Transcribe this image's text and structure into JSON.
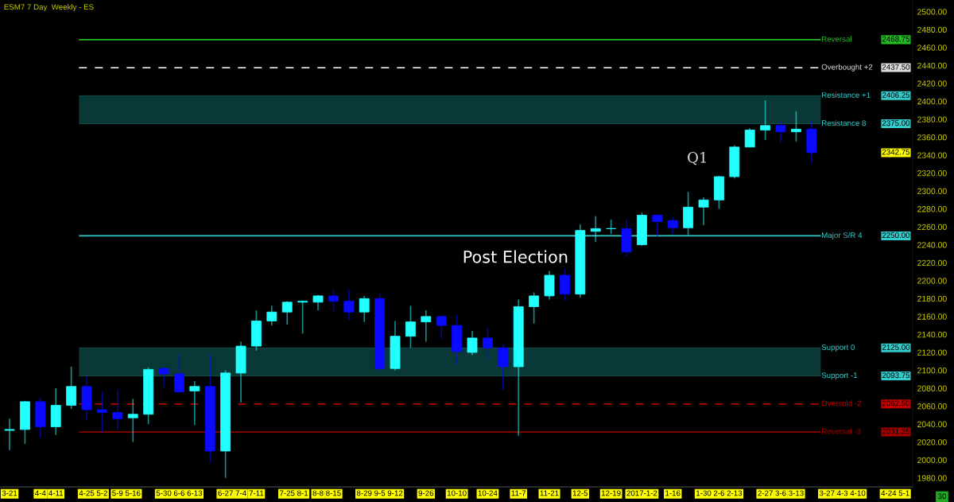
{
  "chart_data": {
    "type": "candlestick",
    "title": "ESM7 7 Day  Weekly - ES",
    "categories": [
      "3-21",
      null,
      "4-4",
      "4-11",
      null,
      "4-25",
      "5-2",
      "5-9",
      "5-16",
      null,
      "5-30",
      "6-6",
      "6-13",
      null,
      "6-27",
      "7-4",
      "7-11",
      null,
      "7-25",
      "8-1",
      "8-8",
      "8-15",
      null,
      "8-29",
      "9-5",
      "9-12",
      null,
      "9-26",
      null,
      "10-10",
      null,
      "10-24",
      null,
      "11-7",
      null,
      "11-21",
      null,
      "12-5",
      null,
      "12-19",
      null,
      "2017-1-2",
      null,
      "1-16",
      null,
      "1-30",
      "2-6",
      "2-13",
      null,
      "2-27",
      "3-6",
      "3-13",
      null,
      "3-27",
      "4-3",
      "4-10",
      null,
      "4-24",
      "5-1"
    ],
    "ohlc": [
      [
        2033,
        2046,
        2011,
        2034
      ],
      [
        2034,
        2066,
        2018,
        2065
      ],
      [
        2065,
        2070,
        2025,
        2037
      ],
      [
        2037,
        2080,
        2028,
        2061
      ],
      [
        2061,
        2104,
        2057,
        2082
      ],
      [
        2082,
        2093,
        2044,
        2056
      ],
      [
        2056,
        2076,
        2030,
        2053
      ],
      [
        2053,
        2079,
        2034,
        2046
      ],
      [
        2047,
        2068,
        2020,
        2051
      ],
      [
        2051,
        2103,
        2040,
        2101
      ],
      [
        2102,
        2104,
        2081,
        2096
      ],
      [
        2096,
        2119,
        2076,
        2076
      ],
      [
        2077,
        2088,
        2039,
        2082
      ],
      [
        2082,
        2118,
        1997,
        2010
      ],
      [
        2010,
        2100,
        1980,
        2097
      ],
      [
        2097,
        2132,
        2064,
        2127
      ],
      [
        2127,
        2167,
        2122,
        2155
      ],
      [
        2155,
        2172,
        2150,
        2165
      ],
      [
        2165,
        2177,
        2151,
        2176
      ],
      [
        2176,
        2178,
        2141,
        2177
      ],
      [
        2176,
        2184,
        2167,
        2183
      ],
      [
        2183,
        2190,
        2165,
        2177
      ],
      [
        2177,
        2190,
        2156,
        2165
      ],
      [
        2165,
        2183,
        2154,
        2180
      ],
      [
        2180,
        2186,
        2100,
        2102
      ],
      [
        2102,
        2155,
        2100,
        2138
      ],
      [
        2138,
        2172,
        2125,
        2154
      ],
      [
        2154,
        2167,
        2132,
        2160
      ],
      [
        2160,
        2161,
        2135,
        2150
      ],
      [
        2150,
        2162,
        2107,
        2121
      ],
      [
        2120,
        2144,
        2117,
        2136
      ],
      [
        2136,
        2148,
        2112,
        2125
      ],
      [
        2125,
        2129,
        2078,
        2104
      ],
      [
        2104,
        2179,
        2027,
        2171
      ],
      [
        2171,
        2187,
        2152,
        2183
      ],
      [
        2183,
        2211,
        2179,
        2206
      ],
      [
        2206,
        2213,
        2178,
        2185
      ],
      [
        2185,
        2263,
        2181,
        2256
      ],
      [
        2255,
        2272,
        2243,
        2258
      ],
      [
        2258,
        2268,
        2252,
        2258
      ],
      [
        2258,
        2268,
        2227,
        2232
      ],
      [
        2240,
        2276,
        2239,
        2273
      ],
      [
        2273,
        2274,
        2249,
        2266
      ],
      [
        2267,
        2271,
        2252,
        2259
      ],
      [
        2259,
        2299,
        2251,
        2282
      ],
      [
        2282,
        2293,
        2262,
        2290
      ],
      [
        2290,
        2317,
        2280,
        2316
      ],
      [
        2316,
        2351,
        2314,
        2349
      ],
      [
        2349,
        2370,
        2349,
        2368
      ],
      [
        2368,
        2401,
        2357,
        2373
      ],
      [
        2373,
        2378,
        2354,
        2366
      ],
      [
        2366,
        2389,
        2355,
        2369
      ],
      [
        2369,
        2378,
        2331,
        2342.75
      ],
      null,
      null,
      null,
      null,
      null,
      null
    ],
    "colors": [
      "#22ffff",
      "#22ffff",
      "#0a0aff",
      "#22ffff",
      "#22ffff",
      "#0a0aff",
      "#0a0aff",
      "#0a0aff",
      "#22ffff",
      "#22ffff",
      "#0a0aff",
      "#0a0aff",
      "#22ffff",
      "#0a0aff",
      "#22ffff",
      "#22ffff",
      "#22ffff",
      "#22ffff",
      "#22ffff",
      "#22ffff",
      "#22ffff",
      "#0a0aff",
      "#0a0aff",
      "#22ffff",
      "#0a0aff",
      "#22ffff",
      "#22ffff",
      "#22ffff",
      "#0a0aff",
      "#0a0aff",
      "#22ffff",
      "#0a0aff",
      "#0a0aff",
      "#22ffff",
      "#22ffff",
      "#22ffff",
      "#0a0aff",
      "#22ffff",
      "#22ffff",
      "#22ffff",
      "#0a0aff",
      "#22ffff",
      "#0a0aff",
      "#0a0aff",
      "#22ffff",
      "#22ffff",
      "#22ffff",
      "#22ffff",
      "#22ffff",
      "#22ffff",
      "#0a0aff",
      "#22ffff",
      "#0a0aff",
      null,
      null,
      null,
      null,
      null,
      null
    ],
    "ylim": [
      1970,
      2513
    ],
    "yticks": [
      {
        "value": 1980,
        "label": "1980.00"
      },
      {
        "value": 2000,
        "label": "2000.00"
      },
      {
        "value": 2020,
        "label": "2020.00"
      },
      {
        "value": 2040,
        "label": "2040.00"
      },
      {
        "value": 2060,
        "label": "2060.00"
      },
      {
        "value": 2080,
        "label": "2080.00"
      },
      {
        "value": 2100,
        "label": "2100.00"
      },
      {
        "value": 2120,
        "label": "2120.00"
      },
      {
        "value": 2140,
        "label": "2140.00"
      },
      {
        "value": 2160,
        "label": "2160.00"
      },
      {
        "value": 2180,
        "label": "2180.00"
      },
      {
        "value": 2200,
        "label": "2200.00"
      },
      {
        "value": 2220,
        "label": "2220.00"
      },
      {
        "value": 2240,
        "label": "2240.00"
      },
      {
        "value": 2260,
        "label": "2260.00"
      },
      {
        "value": 2280,
        "label": "2280.00"
      },
      {
        "value": 2300,
        "label": "2300.00"
      },
      {
        "value": 2320,
        "label": "2320.00"
      },
      {
        "value": 2340,
        "label": "2340.00"
      },
      {
        "value": 2360,
        "label": "2360.00"
      },
      {
        "value": 2380,
        "label": "2380.00"
      },
      {
        "value": 2400,
        "label": "2400.00"
      },
      {
        "value": 2420,
        "label": "2420.00"
      },
      {
        "value": 2440,
        "label": "2440.00"
      },
      {
        "value": 2460,
        "label": "2460.00"
      },
      {
        "value": 2480,
        "label": "2480.00"
      },
      {
        "value": 2500,
        "label": "2500.00"
      }
    ],
    "bands": [
      {
        "axis": "y",
        "from": 2375,
        "to": 2406.25,
        "color": "#0a3836"
      },
      {
        "axis": "y",
        "from": 2093.75,
        "to": 2125,
        "color": "#0a3836"
      }
    ],
    "ref_lines": [
      {
        "axis": "y",
        "value": 2468.75,
        "label": "Reversal",
        "color": "#22bb22"
      },
      {
        "axis": "y",
        "value": 2437.5,
        "label": "Overbought +2",
        "color": "#dddddd",
        "line_style": "dashed"
      },
      {
        "axis": "y",
        "value": 2406.25,
        "label": "Resistance +1",
        "color": "#33cccc"
      },
      {
        "axis": "y",
        "value": 2375,
        "label": "Resistance 8",
        "color": "#33cccc"
      },
      {
        "axis": "y",
        "value": 2250,
        "label": "Major S/R 4",
        "color": "#33cccc"
      },
      {
        "axis": "y",
        "value": 2125,
        "label": "Support 0",
        "color": "#33cccc"
      },
      {
        "axis": "y",
        "value": 2093.75,
        "label": "Support -1",
        "color": "#33cccc"
      },
      {
        "axis": "y",
        "value": 2062.5,
        "label": "Oversold -2",
        "color": "#cc0000",
        "line_style": "dashed"
      },
      {
        "axis": "y",
        "value": 2031.25,
        "label": "Reversal -3",
        "color": "#aa0000"
      }
    ],
    "annotations": [
      "Post Election",
      "Q1",
      "30",
      "2342.75",
      "2468.75",
      "2437.50",
      "2406.25",
      "2375.00",
      "2250.00",
      "2125.00",
      "2093.75",
      "2062.50",
      "2031.25"
    ],
    "grid": false,
    "legend": false
  }
}
